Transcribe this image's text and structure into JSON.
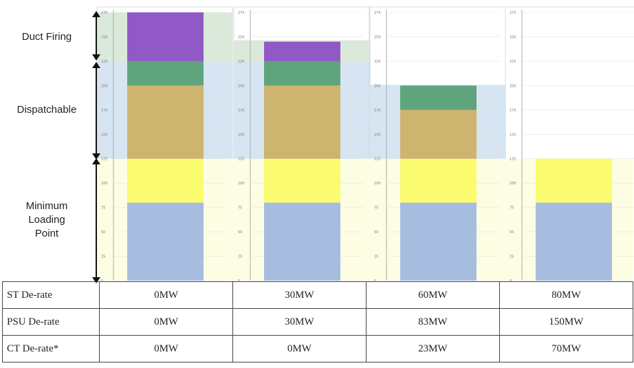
{
  "chart_data": {
    "type": "bar",
    "stacked": true,
    "panel_count": 4,
    "y_ticks": [
      "275",
      "250",
      "225",
      "200",
      "175",
      "150",
      "125",
      "100",
      "75",
      "50",
      "25",
      "0"
    ],
    "ylim": [
      0,
      275
    ],
    "zones": [
      {
        "label": "Minimum Loading Point",
        "from": 0,
        "to": 125,
        "color": "#fdfde3"
      },
      {
        "label": "Dispatchable",
        "from": 125,
        "to": 225,
        "color": "#cfe0ee"
      },
      {
        "label": "Duct Firing",
        "from": 225,
        "to": 275,
        "color": "#d5e5d3"
      }
    ],
    "segments": [
      {
        "name": "seg1",
        "color": "#a7bde0",
        "values": [
          80,
          80,
          80,
          80
        ]
      },
      {
        "name": "seg2",
        "color": "#fbfb70",
        "values": [
          45,
          45,
          45,
          45
        ]
      },
      {
        "name": "seg3",
        "color": "#cdb46f",
        "values": [
          75,
          75,
          50,
          0
        ]
      },
      {
        "name": "seg4",
        "color": "#5fa47c",
        "values": [
          25,
          25,
          25,
          0
        ]
      },
      {
        "name": "seg5",
        "color": "#9159c6",
        "values": [
          50,
          20,
          0,
          0
        ]
      }
    ],
    "totals": [
      275,
      245,
      200,
      125
    ]
  },
  "side_labels": {
    "duct_firing": "Duct Firing",
    "dispatchable": "Dispatchable",
    "min_loading_line1": "Minimum",
    "min_loading_line2": "Loading",
    "min_loading_line3": "Point"
  },
  "table": {
    "rows": [
      {
        "label": "ST De-rate",
        "values": [
          "0MW",
          "30MW",
          "60MW",
          "80MW"
        ]
      },
      {
        "label": "PSU De-rate",
        "values": [
          "0MW",
          "30MW",
          "83MW",
          "150MW"
        ]
      },
      {
        "label": "CT De-rate*",
        "values": [
          "0MW",
          "0MW",
          "23MW",
          "70MW"
        ]
      }
    ]
  }
}
